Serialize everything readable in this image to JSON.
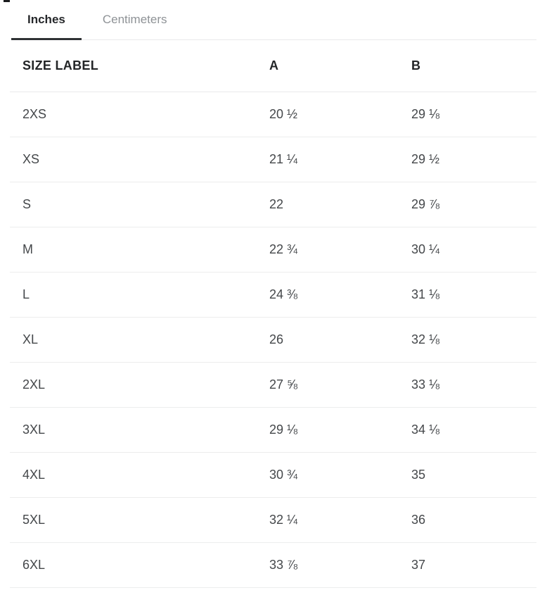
{
  "tabs": {
    "inches": {
      "label": "Inches",
      "active": true
    },
    "centimeters": {
      "label": "Centimeters",
      "active": false
    }
  },
  "table": {
    "columns": [
      "SIZE LABEL",
      "A",
      "B"
    ],
    "rows": [
      [
        "2XS",
        "20 ½",
        "29 ⅛"
      ],
      [
        "XS",
        "21 ¼",
        "29 ½"
      ],
      [
        "S",
        "22",
        "29 ⅞"
      ],
      [
        "M",
        "22 ¾",
        "30 ¼"
      ],
      [
        "L",
        "24 ⅜",
        "31 ⅛"
      ],
      [
        "XL",
        "26",
        "32 ⅛"
      ],
      [
        "2XL",
        "27 ⅝",
        "33 ⅛"
      ],
      [
        "3XL",
        "29 ⅛",
        "34 ⅛"
      ],
      [
        "4XL",
        "30 ¾",
        "35"
      ],
      [
        "5XL",
        "32 ¼",
        "36"
      ],
      [
        "6XL",
        "33 ⅞",
        "37"
      ]
    ]
  },
  "colors": {
    "text_primary": "#26282b",
    "text_body": "#44474a",
    "text_inactive_tab": "#8e9296",
    "border_light": "#e9e9ea",
    "active_tab_underline": "#2f3235"
  }
}
